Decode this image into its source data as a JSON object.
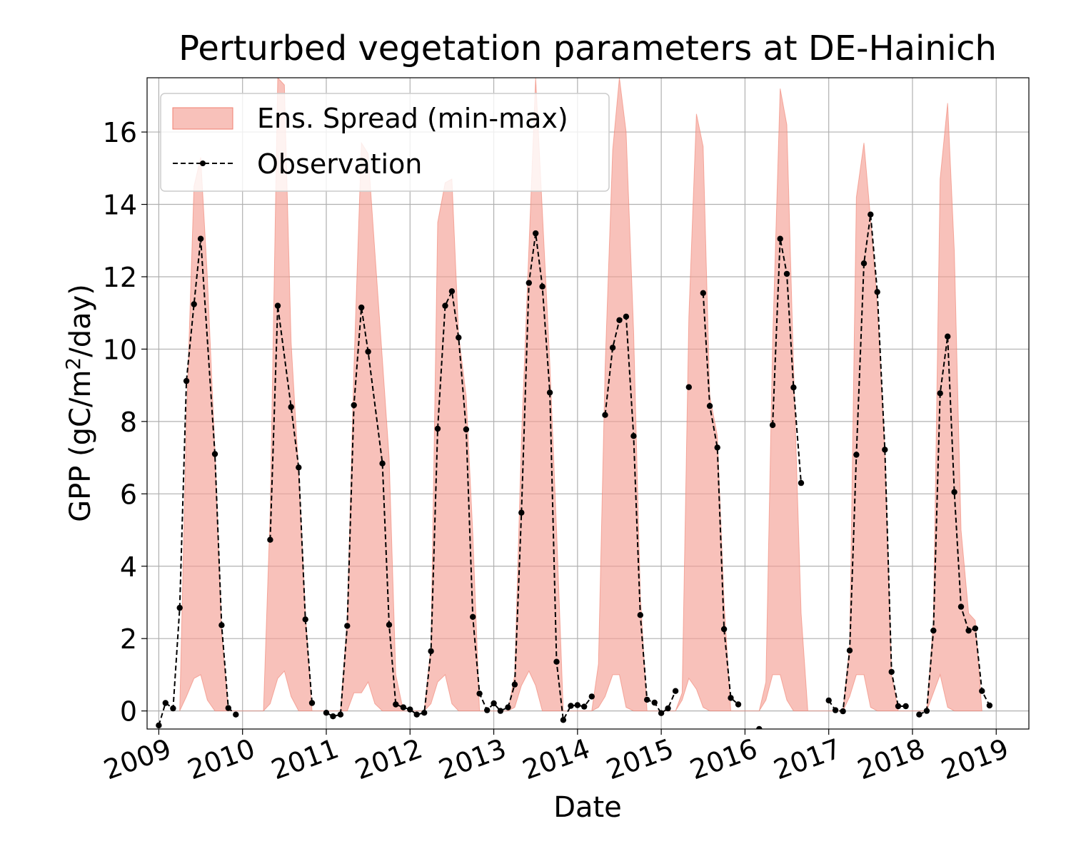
{
  "chart_data": {
    "type": "line",
    "title": "Perturbed vegetation parameters at DE-Hainich",
    "xlabel": "Date",
    "ylabel_main": "GPP  (gC/m",
    "ylabel_sup": "2",
    "ylabel_tail": "/day)",
    "xlim": [
      2008.86,
      2019.39
    ],
    "ylim": [
      -0.5,
      17.5
    ],
    "x_ticks": [
      2009,
      2010,
      2011,
      2012,
      2013,
      2014,
      2015,
      2016,
      2017,
      2018,
      2019
    ],
    "y_ticks": [
      0,
      2,
      4,
      6,
      8,
      10,
      12,
      14,
      16
    ],
    "grid": true,
    "legend_position": "top-left",
    "colors": {
      "spread": "#f4a095",
      "spread_edge": "#f08070",
      "observation": "#000000"
    },
    "series": [
      {
        "name": "Ens. Spread (min-max)",
        "kind": "fill_between",
        "x": [
          2009.25,
          2009.33,
          2009.42,
          2009.5,
          2009.58,
          2009.67,
          2009.75,
          2009.83,
          2009.92,
          2010.0,
          2010.08,
          2010.17,
          2010.25,
          2010.33,
          2010.42,
          2010.5,
          2010.58,
          2010.67,
          2010.75,
          2010.83,
          2010.92,
          2011.0,
          2011.08,
          2011.17,
          2011.25,
          2011.33,
          2011.42,
          2011.5,
          2011.58,
          2011.67,
          2011.75,
          2011.83,
          2011.92,
          2012.0,
          2012.08,
          2012.17,
          2012.25,
          2012.33,
          2012.42,
          2012.5,
          2012.58,
          2012.67,
          2012.75,
          2012.83,
          2012.92,
          2013.0,
          2013.08,
          2013.17,
          2013.25,
          2013.33,
          2013.42,
          2013.5,
          2013.58,
          2013.67,
          2013.75,
          2013.83,
          2013.92,
          2014.0,
          2014.08,
          2014.17,
          2014.25,
          2014.33,
          2014.42,
          2014.5,
          2014.58,
          2014.67,
          2014.75,
          2014.83,
          2014.92,
          2015.0,
          2015.08,
          2015.17,
          2015.25,
          2015.33,
          2015.42,
          2015.5,
          2015.58,
          2015.67,
          2015.75,
          2015.83,
          2015.92,
          2016.0,
          2016.08,
          2016.17,
          2016.25,
          2016.33,
          2016.42,
          2016.5,
          2016.58,
          2016.67,
          2016.75,
          2016.83,
          2016.92,
          2017.0,
          2017.08,
          2017.17,
          2017.25,
          2017.33,
          2017.42,
          2017.5,
          2017.58,
          2017.67,
          2017.75,
          2017.83,
          2017.92,
          2018.0,
          2018.08,
          2018.17,
          2018.25,
          2018.33,
          2018.42,
          2018.5,
          2018.58,
          2018.67,
          2018.75,
          2018.83
        ],
        "lower": [
          0.0,
          0.4,
          0.9,
          1.0,
          0.3,
          0.0,
          0.0,
          0.0,
          0.0,
          0.0,
          0.0,
          0.0,
          0.0,
          0.2,
          0.9,
          1.1,
          0.4,
          0.0,
          0.0,
          0.0,
          0.0,
          0.0,
          0.0,
          0.0,
          0.0,
          0.5,
          0.5,
          0.8,
          0.2,
          0.0,
          0.0,
          0.0,
          0.0,
          0.0,
          0.0,
          0.0,
          0.2,
          0.8,
          1.0,
          0.2,
          0.0,
          0.0,
          0.0,
          0.0,
          0.0,
          0.0,
          0.0,
          0.0,
          0.1,
          0.7,
          1.1,
          0.7,
          0.0,
          0.0,
          0.0,
          0.0,
          0.0,
          0.0,
          0.0,
          0.0,
          0.1,
          0.4,
          1.0,
          1.0,
          0.1,
          0.0,
          0.0,
          0.0,
          0.0,
          0.0,
          0.0,
          0.0,
          0.3,
          0.9,
          0.6,
          0.1,
          0.0,
          0.0,
          0.0,
          0.0,
          0.0,
          0.0,
          0.0,
          0.0,
          0.3,
          1.0,
          1.0,
          0.3,
          0.0,
          0.0,
          0.0,
          0.0,
          0.0,
          0.0,
          0.0,
          0.0,
          0.4,
          1.0,
          1.0,
          0.1,
          0.0,
          0.0,
          0.0,
          0.0,
          0.0,
          0.0,
          0.0,
          0.0,
          0.5,
          1.0,
          0.1,
          0.0,
          0.0,
          0.0,
          0.0,
          0.0
        ],
        "upper": [
          0.0,
          8.0,
          14.5,
          15.3,
          12.0,
          7.2,
          2.2,
          0.0,
          0.0,
          0.0,
          0.0,
          0.0,
          0.0,
          5.5,
          17.5,
          17.3,
          10.2,
          6.6,
          2.7,
          0.0,
          0.0,
          0.0,
          0.0,
          0.0,
          2.5,
          9.5,
          15.7,
          15.4,
          12.7,
          9.7,
          7.0,
          1.0,
          0.0,
          0.0,
          0.0,
          0.0,
          1.8,
          13.5,
          14.6,
          14.7,
          10.4,
          8.7,
          4.9,
          0.0,
          0.0,
          0.0,
          0.0,
          0.0,
          1.0,
          7.5,
          12.8,
          17.5,
          13.8,
          9.6,
          5.0,
          0.0,
          0.0,
          0.0,
          0.0,
          0.0,
          1.3,
          9.5,
          15.5,
          17.5,
          16.0,
          10.5,
          3.2,
          0.0,
          0.0,
          0.0,
          0.0,
          0.0,
          0.5,
          10.9,
          16.5,
          15.6,
          8.7,
          7.6,
          3.0,
          0.0,
          0.0,
          0.0,
          0.0,
          0.0,
          0.8,
          10.2,
          17.2,
          16.2,
          9.5,
          2.7,
          0.0,
          0.0,
          0.0,
          0.0,
          0.0,
          0.0,
          1.8,
          14.2,
          15.7,
          13.6,
          11.2,
          7.2,
          1.0,
          0.0,
          0.0,
          0.0,
          0.0,
          0.0,
          2.5,
          14.7,
          16.8,
          12.7,
          5.0,
          2.7,
          2.5,
          0.0
        ]
      },
      {
        "name": "Observation",
        "kind": "line",
        "style": "dashed, dot markers",
        "x": [
          2009.0,
          2009.08,
          2009.17,
          2009.25,
          2009.33,
          2009.42,
          2009.5,
          2009.67,
          2009.75,
          2009.83,
          2009.92,
          null,
          2010.33,
          2010.42,
          2010.58,
          2010.67,
          2010.75,
          2010.83,
          null,
          2011.0,
          2011.08,
          2011.17,
          2011.25,
          2011.33,
          2011.42,
          2011.5,
          2011.67,
          2011.75,
          2011.83,
          2011.92,
          2012.0,
          2012.08,
          2012.17,
          2012.25,
          2012.33,
          2012.42,
          2012.5,
          2012.58,
          2012.67,
          2012.75,
          2012.83,
          2012.92,
          2013.0,
          2013.08,
          2013.17,
          2013.25,
          2013.33,
          2013.42,
          2013.5,
          2013.58,
          2013.67,
          2013.75,
          2013.83,
          2013.92,
          2014.0,
          2014.08,
          2014.17,
          null,
          2014.33,
          2014.42,
          2014.5,
          2014.58,
          2014.67,
          2014.75,
          2014.83,
          2014.92,
          2015.0,
          2015.08,
          2015.17,
          null,
          2015.33,
          null,
          2015.5,
          2015.58,
          2015.67,
          2015.75,
          2015.83,
          2015.92,
          null,
          2016.17,
          null,
          2016.33,
          2016.42,
          2016.5,
          2016.58,
          2016.67,
          null,
          2017.0,
          2017.08,
          2017.17,
          2017.25,
          2017.33,
          2017.42,
          2017.5,
          2017.58,
          2017.67,
          2017.75,
          2017.83,
          2017.92,
          null,
          2018.08,
          2018.17,
          2018.25,
          2018.33,
          2018.42,
          2018.5,
          2018.58,
          2018.67,
          2018.75,
          2018.83,
          2018.92
        ],
        "y": [
          -0.4,
          0.22,
          0.07,
          2.85,
          9.12,
          11.24,
          13.05,
          7.1,
          2.37,
          0.08,
          -0.1,
          null,
          4.73,
          11.2,
          8.4,
          6.73,
          2.53,
          0.22,
          null,
          -0.05,
          -0.15,
          -0.1,
          2.35,
          8.45,
          11.15,
          9.93,
          6.84,
          2.38,
          0.18,
          0.1,
          0.04,
          -0.1,
          -0.05,
          1.65,
          7.8,
          11.2,
          11.6,
          10.32,
          7.78,
          2.6,
          0.48,
          0.02,
          0.21,
          0.0,
          0.1,
          0.73,
          5.48,
          11.83,
          13.2,
          11.73,
          8.8,
          1.36,
          -0.25,
          0.14,
          0.16,
          0.12,
          0.4,
          null,
          8.18,
          10.04,
          10.8,
          10.9,
          7.6,
          2.65,
          0.31,
          0.23,
          -0.06,
          0.07,
          0.55,
          null,
          8.95,
          null,
          11.55,
          8.43,
          7.28,
          2.26,
          0.36,
          0.18,
          null,
          -0.5,
          null,
          7.9,
          13.05,
          12.08,
          8.94,
          6.3,
          null,
          0.29,
          0.02,
          -0.01,
          1.67,
          7.08,
          12.37,
          13.72,
          11.58,
          7.22,
          1.08,
          0.13,
          0.13,
          null,
          -0.1,
          0.0,
          2.22,
          8.78,
          10.35,
          6.05,
          2.88,
          2.22,
          2.28,
          0.55,
          0.15
        ]
      }
    ]
  }
}
